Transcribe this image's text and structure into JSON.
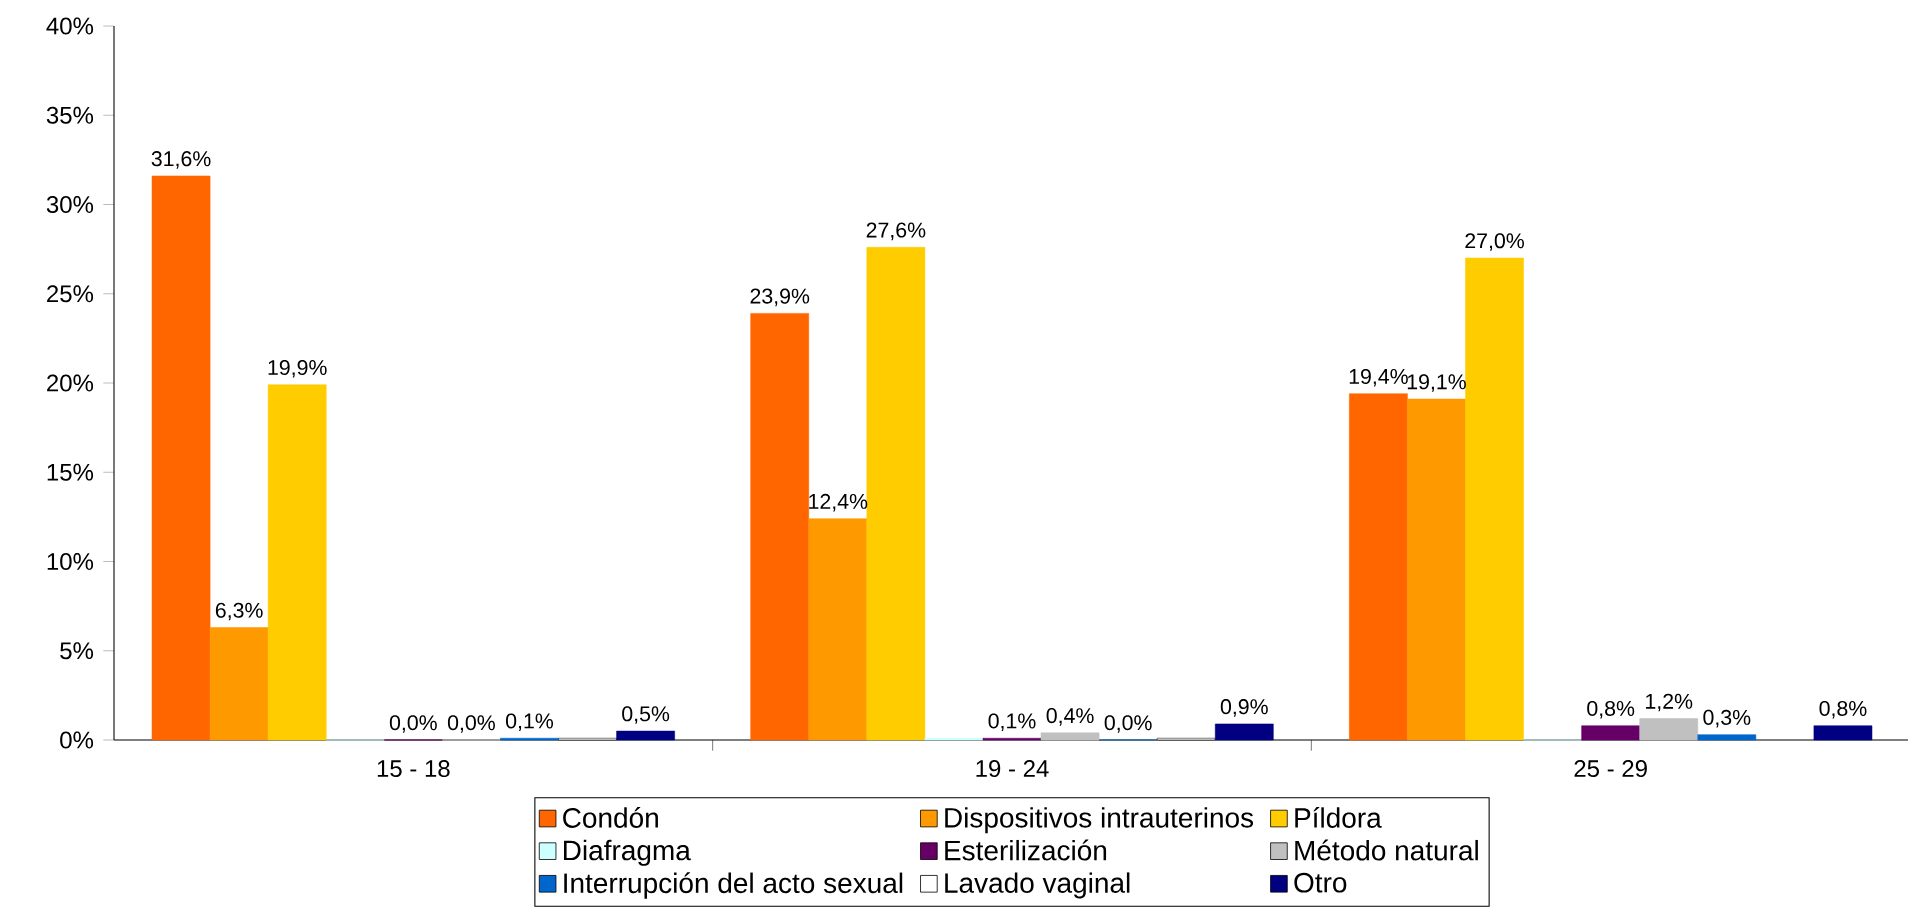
{
  "chart_data": {
    "type": "bar",
    "categories": [
      "15 - 18",
      "19 - 24",
      "25 - 29"
    ],
    "ylim": [
      0,
      40
    ],
    "yticks": [
      {
        "value": 0,
        "label": "0%"
      },
      {
        "value": 5,
        "label": "5%"
      },
      {
        "value": 10,
        "label": "10%"
      },
      {
        "value": 15,
        "label": "15%"
      },
      {
        "value": 20,
        "label": "20%"
      },
      {
        "value": 25,
        "label": "25%"
      },
      {
        "value": 30,
        "label": "30%"
      },
      {
        "value": 35,
        "label": "35%"
      },
      {
        "value": 40,
        "label": "40%"
      }
    ],
    "legend": "bottom",
    "grid": false,
    "series": [
      {
        "name": "Condón",
        "color": "#ff6600",
        "values": [
          31.6,
          23.9,
          19.4
        ],
        "value_labels": [
          "31,6%",
          "23,9%",
          "19,4%"
        ]
      },
      {
        "name": "Dispositivos intrauterinos",
        "color": "#ff9900",
        "values": [
          6.3,
          12.4,
          19.1
        ],
        "value_labels": [
          "6,3%",
          "12,4%",
          "19,1%"
        ]
      },
      {
        "name": "Píldora",
        "color": "#ffcc00",
        "values": [
          19.9,
          27.6,
          27.0
        ],
        "value_labels": [
          "19,9%",
          "27,6%",
          "27,0%"
        ]
      },
      {
        "name": "Diafragma",
        "color": "#ccffff",
        "values": [
          0,
          0.1,
          0
        ],
        "value_labels": [
          null,
          null,
          null
        ]
      },
      {
        "name": "Esterilización",
        "color": "#660066",
        "values": [
          0.0,
          0.1,
          0.8
        ],
        "value_labels": [
          "0,0%",
          "0,1%",
          "0,8%"
        ]
      },
      {
        "name": "Método natural",
        "color": "#c0c0c0",
        "values": [
          0.0,
          0.4,
          1.2
        ],
        "value_labels": [
          "0,0%",
          "0,4%",
          "1,2%"
        ]
      },
      {
        "name": "Interrupción del acto sexual",
        "color": "#0066cc",
        "values": [
          0.1,
          0.0,
          0.3
        ],
        "value_labels": [
          "0,1%",
          "0,0%",
          "0,3%"
        ]
      },
      {
        "name": "Lavado vaginal",
        "color": "#ffffff",
        "values": [
          0.1,
          0.1,
          null
        ],
        "value_labels": [
          null,
          null,
          null
        ]
      },
      {
        "name": "Otro",
        "color": "#000080",
        "values": [
          0.5,
          0.9,
          0.8
        ],
        "value_labels": [
          "0,5%",
          "0,9%",
          "0,8%"
        ]
      }
    ]
  }
}
